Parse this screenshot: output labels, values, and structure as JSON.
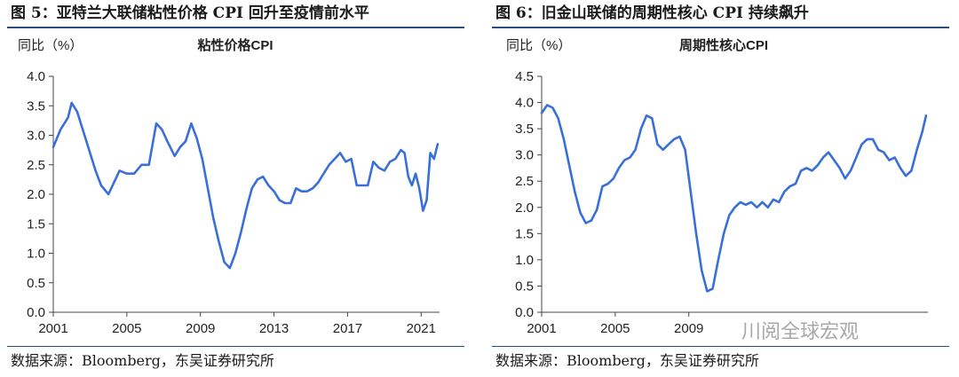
{
  "figures": [
    {
      "title": "图 5：亚特兰大联储粘性价格 CPI 回升至疫情前水平",
      "source": "数据来源：Bloomberg，东吴证券研究所",
      "chart_data": {
        "type": "line",
        "title": "粘性价格CPI",
        "ylabel": "同比（%）",
        "xlabel": "",
        "xlim": [
          2001,
          2022
        ],
        "ylim": [
          0.0,
          4.0
        ],
        "x_ticks": [
          "2001",
          "2005",
          "2009",
          "2013",
          "2017",
          "2021"
        ],
        "y_ticks": [
          "0.0",
          "0.5",
          "1.0",
          "1.5",
          "2.0",
          "2.5",
          "3.0",
          "3.5",
          "4.0"
        ],
        "legend": "none",
        "grid": false,
        "color": "#3a6fd8",
        "series": [
          {
            "x": [
              2001.0,
              2001.4,
              2001.8,
              2002.0,
              2002.3,
              2002.6,
              2003.0,
              2003.3,
              2003.6,
              2004.0,
              2004.3,
              2004.6,
              2005.0,
              2005.4,
              2005.8,
              2006.2,
              2006.6,
              2006.9,
              2007.2,
              2007.6,
              2007.9,
              2008.2,
              2008.5,
              2008.8,
              2009.1,
              2009.4,
              2009.7,
              2010.0,
              2010.3,
              2010.6,
              2010.9,
              2011.2,
              2011.5,
              2011.8,
              2012.1,
              2012.4,
              2012.7,
              2013.0,
              2013.3,
              2013.6,
              2013.9,
              2014.2,
              2014.5,
              2014.8,
              2015.1,
              2015.4,
              2015.7,
              2016.0,
              2016.3,
              2016.6,
              2016.9,
              2017.2,
              2017.5,
              2017.8,
              2018.1,
              2018.4,
              2018.7,
              2019.0,
              2019.3,
              2019.6,
              2019.9,
              2020.1,
              2020.3,
              2020.5,
              2020.7,
              2020.9,
              2021.1,
              2021.3,
              2021.5,
              2021.7,
              2021.9
            ],
            "values": [
              2.8,
              3.1,
              3.3,
              3.55,
              3.4,
              3.1,
              2.7,
              2.4,
              2.15,
              2.0,
              2.2,
              2.4,
              2.35,
              2.35,
              2.5,
              2.5,
              3.2,
              3.1,
              2.9,
              2.65,
              2.8,
              2.9,
              3.2,
              2.95,
              2.6,
              2.1,
              1.6,
              1.2,
              0.85,
              0.75,
              1.0,
              1.35,
              1.75,
              2.1,
              2.25,
              2.3,
              2.15,
              2.05,
              1.9,
              1.85,
              1.85,
              2.1,
              2.05,
              2.05,
              2.1,
              2.2,
              2.35,
              2.5,
              2.6,
              2.7,
              2.55,
              2.6,
              2.15,
              2.15,
              2.15,
              2.55,
              2.45,
              2.4,
              2.55,
              2.6,
              2.75,
              2.7,
              2.3,
              2.15,
              2.35,
              2.1,
              1.72,
              1.9,
              2.7,
              2.6,
              2.85
            ]
          }
        ]
      }
    },
    {
      "title": "图 6：旧金山联储的周期性核心 CPI 持续飙升",
      "source": "数据来源：Bloomberg，东吴证券研究所",
      "chart_data": {
        "type": "line",
        "title": "周期性核心CPI",
        "ylabel": "同比（%）",
        "xlabel": "",
        "xlim": [
          2001,
          2022
        ],
        "ylim": [
          0.0,
          4.5
        ],
        "x_ticks": [
          "2001",
          "2005",
          "2009"
        ],
        "y_ticks": [
          "0.0",
          "0.5",
          "1.0",
          "1.5",
          "2.0",
          "2.5",
          "3.0",
          "3.5",
          "4.0",
          "4.5"
        ],
        "legend": "none",
        "grid": false,
        "color": "#3a6fd8",
        "series": [
          {
            "x": [
              2001.0,
              2001.3,
              2001.6,
              2001.9,
              2002.2,
              2002.5,
              2002.8,
              2003.1,
              2003.4,
              2003.7,
              2004.0,
              2004.3,
              2004.6,
              2004.9,
              2005.2,
              2005.5,
              2005.8,
              2006.1,
              2006.4,
              2006.7,
              2007.0,
              2007.3,
              2007.6,
              2007.9,
              2008.2,
              2008.5,
              2008.8,
              2009.1,
              2009.4,
              2009.7,
              2010.0,
              2010.3,
              2010.6,
              2010.9,
              2011.2,
              2011.5,
              2011.8,
              2012.1,
              2012.4,
              2012.7,
              2013.0,
              2013.3,
              2013.6,
              2013.9,
              2014.2,
              2014.5,
              2014.8,
              2015.1,
              2015.4,
              2015.7,
              2016.0,
              2016.3,
              2016.6,
              2016.9,
              2017.2,
              2017.5,
              2017.8,
              2018.1,
              2018.4,
              2018.7,
              2019.0,
              2019.3,
              2019.6,
              2019.9,
              2020.2,
              2020.5,
              2020.8,
              2021.1,
              2021.4,
              2021.7,
              2021.9
            ],
            "values": [
              3.8,
              3.95,
              3.9,
              3.7,
              3.3,
              2.8,
              2.3,
              1.9,
              1.7,
              1.75,
              1.95,
              2.4,
              2.45,
              2.55,
              2.75,
              2.9,
              2.95,
              3.1,
              3.5,
              3.75,
              3.7,
              3.2,
              3.1,
              3.2,
              3.3,
              3.35,
              3.1,
              2.3,
              1.5,
              0.8,
              0.4,
              0.45,
              1.0,
              1.5,
              1.85,
              2.0,
              2.1,
              2.05,
              2.1,
              2.0,
              2.1,
              2.0,
              2.15,
              2.1,
              2.3,
              2.4,
              2.45,
              2.7,
              2.75,
              2.7,
              2.8,
              2.95,
              3.05,
              2.9,
              2.75,
              2.55,
              2.7,
              2.95,
              3.2,
              3.3,
              3.3,
              3.1,
              3.05,
              2.9,
              2.95,
              2.75,
              2.6,
              2.7,
              3.1,
              3.45,
              3.75
            ]
          }
        ]
      }
    }
  ],
  "watermark": "川阅全球宏观"
}
